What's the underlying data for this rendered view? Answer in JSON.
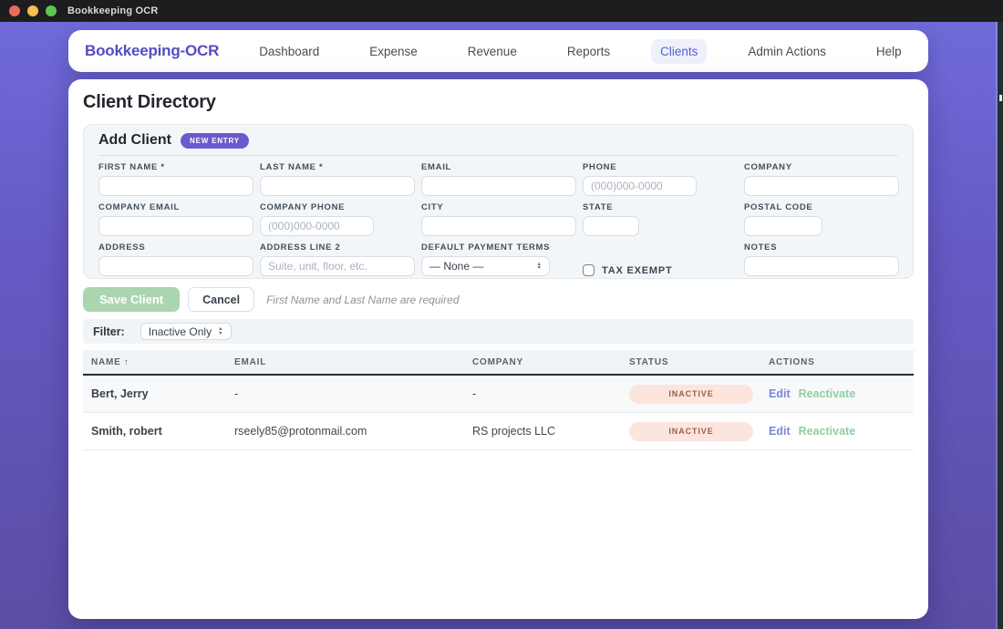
{
  "window": {
    "title": "Bookkeeping OCR"
  },
  "nav": {
    "brand": "Bookkeeping-OCR",
    "items": [
      {
        "label": "Dashboard",
        "active": false
      },
      {
        "label": "Expense",
        "active": false
      },
      {
        "label": "Revenue",
        "active": false
      },
      {
        "label": "Reports",
        "active": false
      },
      {
        "label": "Clients",
        "active": true
      },
      {
        "label": "Admin Actions",
        "active": false
      },
      {
        "label": "Help",
        "active": false
      }
    ]
  },
  "page": {
    "title": "Client Directory"
  },
  "form": {
    "title": "Add Client",
    "badge": "NEW ENTRY",
    "fields": {
      "first_name": {
        "label": "FIRST NAME *",
        "value": "",
        "placeholder": ""
      },
      "last_name": {
        "label": "LAST NAME *",
        "value": "",
        "placeholder": ""
      },
      "email": {
        "label": "EMAIL",
        "value": "",
        "placeholder": ""
      },
      "phone": {
        "label": "PHONE",
        "value": "",
        "placeholder": "(000)000-0000"
      },
      "company": {
        "label": "COMPANY",
        "value": "",
        "placeholder": ""
      },
      "company_email": {
        "label": "COMPANY EMAIL",
        "value": "",
        "placeholder": ""
      },
      "company_phone": {
        "label": "COMPANY PHONE",
        "value": "",
        "placeholder": "(000)000-0000"
      },
      "city": {
        "label": "CITY",
        "value": "",
        "placeholder": ""
      },
      "state": {
        "label": "STATE",
        "value": "",
        "placeholder": ""
      },
      "postal_code": {
        "label": "POSTAL CODE",
        "value": "",
        "placeholder": ""
      },
      "address": {
        "label": "ADDRESS",
        "value": "",
        "placeholder": ""
      },
      "address2": {
        "label": "ADDRESS LINE 2",
        "value": "",
        "placeholder": "Suite, unit, floor, etc."
      },
      "payment_terms": {
        "label": "DEFAULT PAYMENT TERMS",
        "value": "— None —"
      },
      "tax_exempt": {
        "label": "TAX EXEMPT",
        "checked": false
      },
      "notes": {
        "label": "NOTES",
        "value": "",
        "placeholder": ""
      }
    },
    "save_label": "Save Client",
    "cancel_label": "Cancel",
    "helper": "First Name and Last Name are required"
  },
  "filter": {
    "label": "Filter:",
    "value": "Inactive Only"
  },
  "table": {
    "columns": [
      "NAME",
      "EMAIL",
      "COMPANY",
      "STATUS",
      "ACTIONS"
    ],
    "sort_arrow": "↑",
    "rows": [
      {
        "name": "Bert, Jerry",
        "email": "-",
        "company": "-",
        "status": "INACTIVE",
        "edit": "Edit",
        "reactivate": "Reactivate"
      },
      {
        "name": "Smith, robert",
        "email": "rseely85@protonmail.com",
        "company": "RS projects LLC",
        "status": "INACTIVE",
        "edit": "Edit",
        "reactivate": "Reactivate"
      }
    ]
  },
  "colors": {
    "brand_purple": "#554CC2",
    "nav_active": "#5560CF",
    "badge_purple": "#6C59CE",
    "save_green": "#ABD5B0",
    "status_bg": "#FBE5DD",
    "status_text": "#99604C",
    "edit_link": "#7B87DB",
    "reactivate_link": "#94CCA4",
    "titlebar": "#1D1D1F",
    "desktop_purple": "#655AC4"
  }
}
